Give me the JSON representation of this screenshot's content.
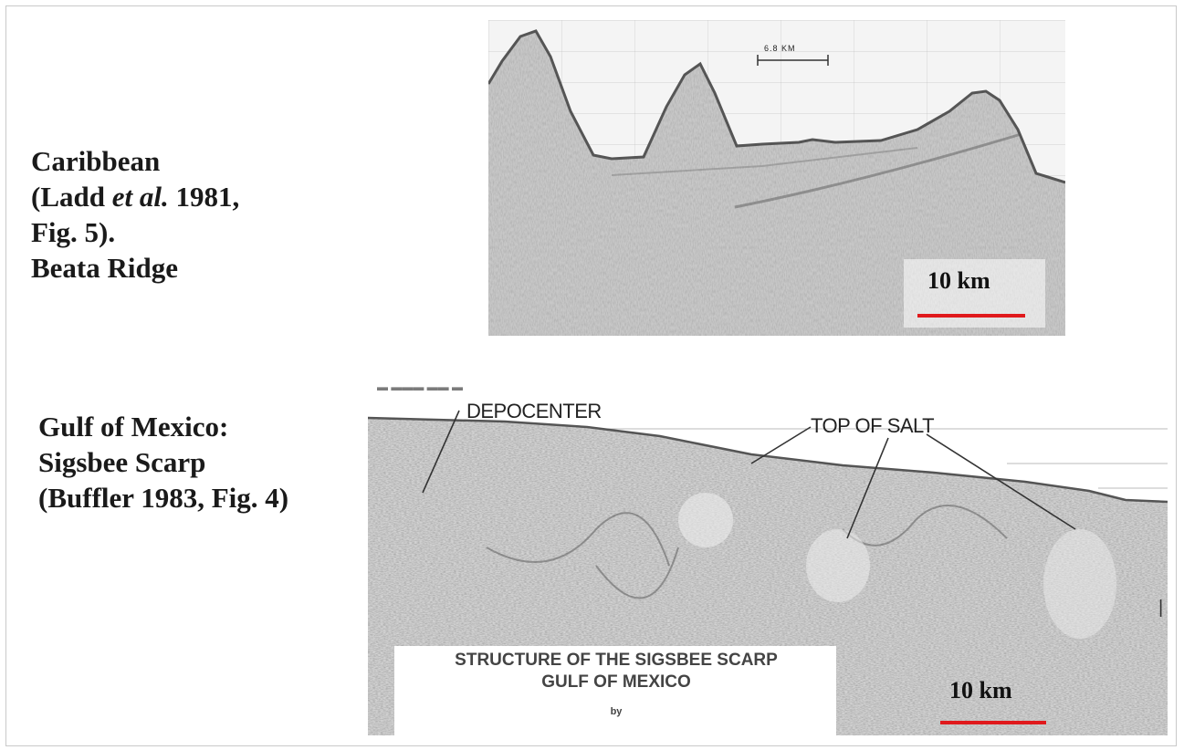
{
  "captions": {
    "caribbean": {
      "line1": "Caribbean",
      "line2_pre": "(Ladd ",
      "line2_ital": "et al.",
      "line2_post": " 1981,",
      "line3": "Fig. 5).",
      "line4": "Beata Ridge"
    },
    "gulf": {
      "line1": "Gulf of Mexico:",
      "line2": "Sigsbee Scarp",
      "line3": "(Buffler 1983, Fig. 4)"
    }
  },
  "figure_top": {
    "scale_annotation": "6.8 KM",
    "scale_bar_label": "10 km"
  },
  "figure_bottom": {
    "annotation_depocenter": "DEPOCENTER",
    "annotation_top_salt": "TOP OF SALT",
    "title_line1": "STRUCTURE OF THE SIGSBEE SCARP",
    "title_line2": "GULF OF MEXICO",
    "title_line3": "by",
    "scale_bar_label": "10 km"
  },
  "colors": {
    "scale_bar": "#e0191c",
    "seismic_light": "#efefef",
    "seismic_dark": "#6e6e6e"
  }
}
